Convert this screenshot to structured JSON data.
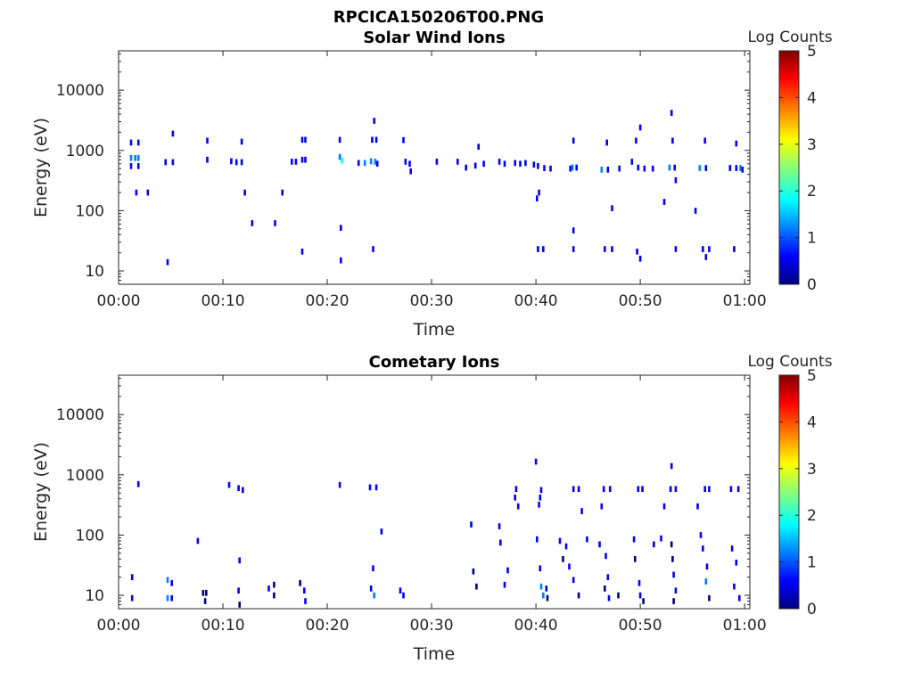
{
  "figure_title": "RPCICA150206T00.PNG",
  "colormap": [
    "#00007f",
    "#0000ff",
    "#007fff",
    "#00ffff",
    "#7fff7f",
    "#ffff00",
    "#ff7f00",
    "#ff0000",
    "#7f0000"
  ],
  "chart_data": [
    {
      "type": "heatmap",
      "title": "Solar Wind Ions",
      "xlabel": "Time",
      "ylabel": "Energy (eV)",
      "y_scale": "log",
      "ylim": [
        6,
        45000
      ],
      "xlim_minutes": [
        0,
        60.5
      ],
      "x_ticks": [
        "00:00",
        "00:10",
        "00:20",
        "00:30",
        "00:40",
        "00:50",
        "01:00"
      ],
      "y_ticks": [
        {
          "value": 10,
          "label": "10"
        },
        {
          "value": 100,
          "label": "100"
        },
        {
          "value": 1000,
          "label": "1000"
        },
        {
          "value": 10000,
          "label": "10000"
        }
      ],
      "colorbar": {
        "label": "Log Counts",
        "min": 0,
        "max": 5,
        "ticks": [
          "0",
          "1",
          "2",
          "3",
          "4",
          "5"
        ]
      },
      "cells": [
        [
          1.2,
          1350,
          1
        ],
        [
          1.9,
          1350,
          1
        ],
        [
          1.2,
          750,
          2
        ],
        [
          1.6,
          750,
          2
        ],
        [
          1.9,
          750,
          2
        ],
        [
          1.2,
          550,
          1
        ],
        [
          1.9,
          550,
          1
        ],
        [
          1.7,
          200,
          1
        ],
        [
          2.8,
          200,
          1
        ],
        [
          5.2,
          1900,
          1
        ],
        [
          4.5,
          640,
          1
        ],
        [
          5.2,
          640,
          1
        ],
        [
          4.7,
          14,
          1
        ],
        [
          8.5,
          1450,
          1
        ],
        [
          8.5,
          700,
          1
        ],
        [
          10.8,
          660,
          1
        ],
        [
          11.8,
          1400,
          1
        ],
        [
          11.8,
          640,
          1
        ],
        [
          11.3,
          640,
          1
        ],
        [
          12.1,
          200,
          1
        ],
        [
          12.8,
          62,
          1
        ],
        [
          15.0,
          62,
          1
        ],
        [
          15.7,
          200,
          1
        ],
        [
          16.6,
          650,
          1
        ],
        [
          17.0,
          650,
          1
        ],
        [
          17.6,
          1500,
          1
        ],
        [
          17.9,
          1500,
          1
        ],
        [
          17.6,
          700,
          1
        ],
        [
          17.9,
          700,
          1
        ],
        [
          17.6,
          21,
          1
        ],
        [
          21.2,
          1500,
          1
        ],
        [
          21.2,
          780,
          2
        ],
        [
          21.4,
          680,
          3
        ],
        [
          21.3,
          52,
          1
        ],
        [
          21.3,
          15,
          1
        ],
        [
          23.0,
          620,
          1
        ],
        [
          23.6,
          620,
          2
        ],
        [
          24.2,
          660,
          2
        ],
        [
          24.6,
          650,
          2
        ],
        [
          24.8,
          600,
          1
        ],
        [
          24.3,
          1500,
          1
        ],
        [
          24.7,
          1500,
          1
        ],
        [
          24.5,
          3100,
          1
        ],
        [
          24.4,
          23,
          1
        ],
        [
          27.3,
          1480,
          1
        ],
        [
          27.5,
          650,
          1
        ],
        [
          27.9,
          600,
          1
        ],
        [
          28.0,
          450,
          1
        ],
        [
          30.5,
          650,
          1
        ],
        [
          32.5,
          650,
          1
        ],
        [
          33.3,
          520,
          1
        ],
        [
          34.2,
          560,
          1
        ],
        [
          35.0,
          600,
          1
        ],
        [
          34.5,
          1150,
          1
        ],
        [
          36.5,
          650,
          1
        ],
        [
          37.0,
          600,
          1
        ],
        [
          38.0,
          620,
          1
        ],
        [
          38.5,
          600,
          1
        ],
        [
          39.0,
          620,
          1
        ],
        [
          39.8,
          580,
          1
        ],
        [
          40.2,
          550,
          1
        ],
        [
          40.8,
          510,
          1
        ],
        [
          41.4,
          500,
          1
        ],
        [
          40.3,
          200,
          1
        ],
        [
          40.1,
          160,
          1
        ],
        [
          40.2,
          23,
          1
        ],
        [
          40.7,
          23,
          1
        ],
        [
          43.3,
          500,
          1
        ],
        [
          43.5,
          520,
          2
        ],
        [
          43.9,
          520,
          1
        ],
        [
          43.6,
          1450,
          1
        ],
        [
          43.6,
          47,
          1
        ],
        [
          43.6,
          23,
          1
        ],
        [
          46.3,
          480,
          2
        ],
        [
          46.9,
          480,
          1
        ],
        [
          46.8,
          1350,
          1
        ],
        [
          46.6,
          23,
          1
        ],
        [
          47.3,
          23,
          1
        ],
        [
          47.3,
          110,
          1
        ],
        [
          48.0,
          500,
          1
        ],
        [
          49.2,
          650,
          1
        ],
        [
          49.8,
          520,
          1
        ],
        [
          50.4,
          500,
          1
        ],
        [
          51.2,
          500,
          1
        ],
        [
          49.6,
          1450,
          1
        ],
        [
          50.0,
          2400,
          1
        ],
        [
          49.7,
          21,
          1
        ],
        [
          50.0,
          16,
          1
        ],
        [
          52.8,
          520,
          2
        ],
        [
          53.3,
          520,
          1
        ],
        [
          53.4,
          320,
          1
        ],
        [
          53.1,
          1450,
          1
        ],
        [
          53.0,
          4200,
          1
        ],
        [
          52.3,
          140,
          1
        ],
        [
          53.4,
          23,
          1
        ],
        [
          55.7,
          510,
          2
        ],
        [
          56.3,
          510,
          1
        ],
        [
          56.2,
          1450,
          1
        ],
        [
          56.0,
          23,
          1
        ],
        [
          56.6,
          23,
          1
        ],
        [
          55.3,
          100,
          1
        ],
        [
          56.3,
          17,
          1
        ],
        [
          58.6,
          510,
          1
        ],
        [
          59.2,
          510,
          1
        ],
        [
          59.6,
          510,
          2
        ],
        [
          59.8,
          480,
          1
        ],
        [
          59.2,
          1300,
          1
        ],
        [
          59.0,
          23,
          1
        ]
      ]
    },
    {
      "type": "heatmap",
      "title": "Cometary Ions",
      "xlabel": "Time",
      "ylabel": "Energy (eV)",
      "y_scale": "log",
      "ylim": [
        6,
        45000
      ],
      "xlim_minutes": [
        0,
        60.5
      ],
      "x_ticks": [
        "00:00",
        "00:10",
        "00:20",
        "00:30",
        "00:40",
        "00:50",
        "01:00"
      ],
      "y_ticks": [
        {
          "value": 10,
          "label": "10"
        },
        {
          "value": 100,
          "label": "100"
        },
        {
          "value": 1000,
          "label": "1000"
        },
        {
          "value": 10000,
          "label": "10000"
        }
      ],
      "colorbar": {
        "label": "Log Counts",
        "min": 0,
        "max": 5,
        "ticks": [
          "0",
          "1",
          "2",
          "3",
          "4",
          "5"
        ]
      },
      "cells": [
        [
          1.3,
          20,
          1
        ],
        [
          1.3,
          9,
          1
        ],
        [
          1.9,
          700,
          1
        ],
        [
          4.7,
          18,
          2
        ],
        [
          4.7,
          9,
          2
        ],
        [
          5.1,
          16,
          1
        ],
        [
          5.1,
          9,
          1
        ],
        [
          7.6,
          80,
          1
        ],
        [
          8.1,
          11,
          0
        ],
        [
          8.4,
          11,
          0
        ],
        [
          8.3,
          8,
          0
        ],
        [
          10.6,
          680,
          1
        ],
        [
          11.5,
          600,
          1
        ],
        [
          11.9,
          560,
          1
        ],
        [
          11.6,
          38,
          1
        ],
        [
          11.5,
          12,
          1
        ],
        [
          11.6,
          7,
          0
        ],
        [
          14.4,
          13,
          1
        ],
        [
          14.9,
          15,
          0
        ],
        [
          14.9,
          10,
          0
        ],
        [
          17.4,
          16,
          0
        ],
        [
          17.8,
          12,
          1
        ],
        [
          17.9,
          8,
          1
        ],
        [
          21.2,
          680,
          1
        ],
        [
          24.1,
          620,
          1
        ],
        [
          24.7,
          620,
          1
        ],
        [
          24.4,
          28,
          1
        ],
        [
          24.2,
          13,
          1
        ],
        [
          24.5,
          10,
          2
        ],
        [
          25.2,
          115,
          1
        ],
        [
          27.0,
          12,
          1
        ],
        [
          27.3,
          10,
          1
        ],
        [
          33.8,
          150,
          1
        ],
        [
          34.0,
          25,
          0
        ],
        [
          34.3,
          14,
          0
        ],
        [
          37.0,
          15,
          1
        ],
        [
          36.5,
          140,
          1
        ],
        [
          36.6,
          75,
          1
        ],
        [
          37.3,
          26,
          1
        ],
        [
          38.1,
          580,
          1
        ],
        [
          38.0,
          420,
          1
        ],
        [
          38.3,
          300,
          1
        ],
        [
          40.0,
          1650,
          1
        ],
        [
          40.1,
          85,
          1
        ],
        [
          40.5,
          560,
          1
        ],
        [
          40.4,
          420,
          1
        ],
        [
          40.3,
          320,
          1
        ],
        [
          40.4,
          28,
          1
        ],
        [
          40.5,
          14,
          2
        ],
        [
          40.7,
          10,
          2
        ],
        [
          41.0,
          13,
          1
        ],
        [
          41.1,
          9,
          0
        ],
        [
          43.6,
          580,
          1
        ],
        [
          44.1,
          580,
          1
        ],
        [
          42.3,
          80,
          1
        ],
        [
          42.9,
          65,
          1
        ],
        [
          42.6,
          40,
          0
        ],
        [
          43.2,
          30,
          1
        ],
        [
          43.6,
          18,
          1
        ],
        [
          44.1,
          10,
          0
        ],
        [
          44.4,
          250,
          1
        ],
        [
          44.9,
          85,
          1
        ],
        [
          46.5,
          580,
          1
        ],
        [
          47.1,
          580,
          1
        ],
        [
          46.3,
          300,
          1
        ],
        [
          46.1,
          70,
          1
        ],
        [
          46.7,
          45,
          1
        ],
        [
          46.9,
          20,
          1
        ],
        [
          46.6,
          13,
          0
        ],
        [
          47.0,
          9,
          1
        ],
        [
          47.9,
          10,
          0
        ],
        [
          49.8,
          580,
          1
        ],
        [
          50.2,
          580,
          1
        ],
        [
          49.4,
          85,
          1
        ],
        [
          49.5,
          40,
          0
        ],
        [
          49.9,
          16,
          1
        ],
        [
          50.0,
          10,
          1
        ],
        [
          50.3,
          8,
          0
        ],
        [
          51.3,
          70,
          1
        ],
        [
          52.0,
          88,
          1
        ],
        [
          53.0,
          1400,
          1
        ],
        [
          52.9,
          580,
          1
        ],
        [
          53.4,
          580,
          1
        ],
        [
          52.3,
          300,
          1
        ],
        [
          53.0,
          70,
          0
        ],
        [
          53.1,
          40,
          0
        ],
        [
          53.2,
          22,
          1
        ],
        [
          53.4,
          12,
          1
        ],
        [
          53.2,
          8,
          0
        ],
        [
          55.5,
          300,
          1
        ],
        [
          56.2,
          580,
          1
        ],
        [
          56.6,
          580,
          1
        ],
        [
          55.8,
          100,
          1
        ],
        [
          56.0,
          60,
          1
        ],
        [
          56.4,
          30,
          1
        ],
        [
          56.3,
          17,
          2
        ],
        [
          56.6,
          9,
          0
        ],
        [
          58.7,
          580,
          1
        ],
        [
          59.4,
          580,
          1
        ],
        [
          58.8,
          60,
          1
        ],
        [
          59.2,
          35,
          1
        ],
        [
          59.0,
          14,
          1
        ],
        [
          59.5,
          9,
          1
        ]
      ]
    }
  ]
}
